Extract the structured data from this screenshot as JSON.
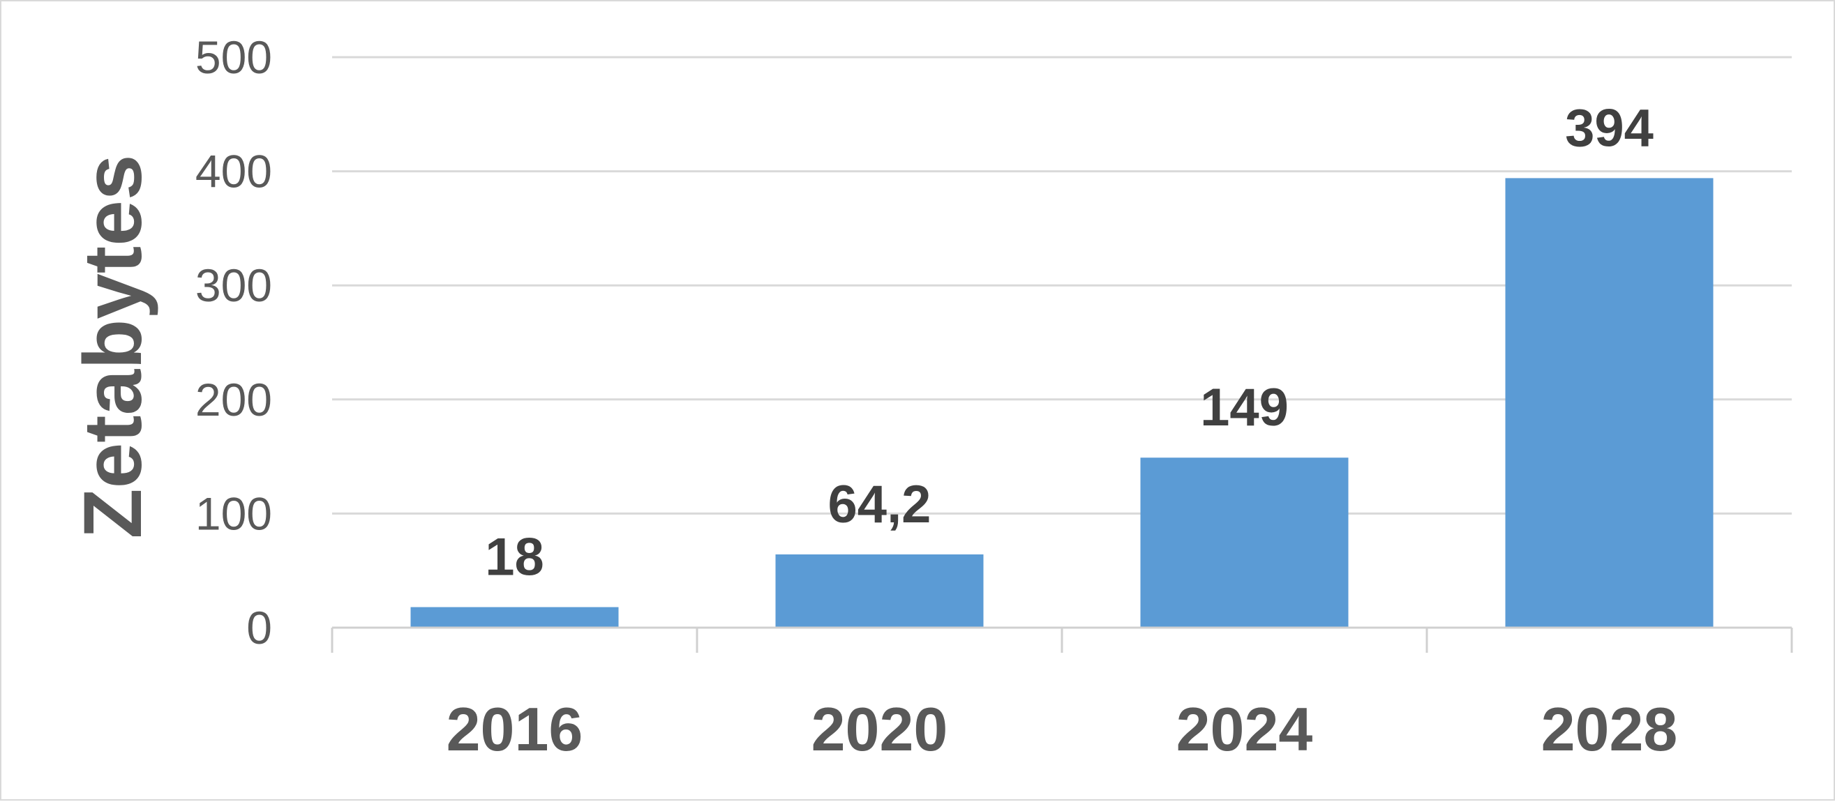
{
  "chart_data": {
    "type": "bar",
    "categories": [
      "2016",
      "2020",
      "2024",
      "2028"
    ],
    "values": [
      18,
      64.2,
      149,
      394
    ],
    "value_labels": [
      "18",
      "64,2",
      "149",
      "394"
    ],
    "title": "",
    "xlabel": "",
    "ylabel": "Zetabytes",
    "ylim": [
      0,
      500
    ],
    "yticks": [
      0,
      100,
      200,
      300,
      400,
      500
    ],
    "grid": true,
    "legend": "none",
    "colors": {
      "bar": "#5b9bd5",
      "grid": "#d9d9d9",
      "axis": "#d0d0d0",
      "tick_text": "#595959",
      "data_label_text": "#404040"
    }
  }
}
